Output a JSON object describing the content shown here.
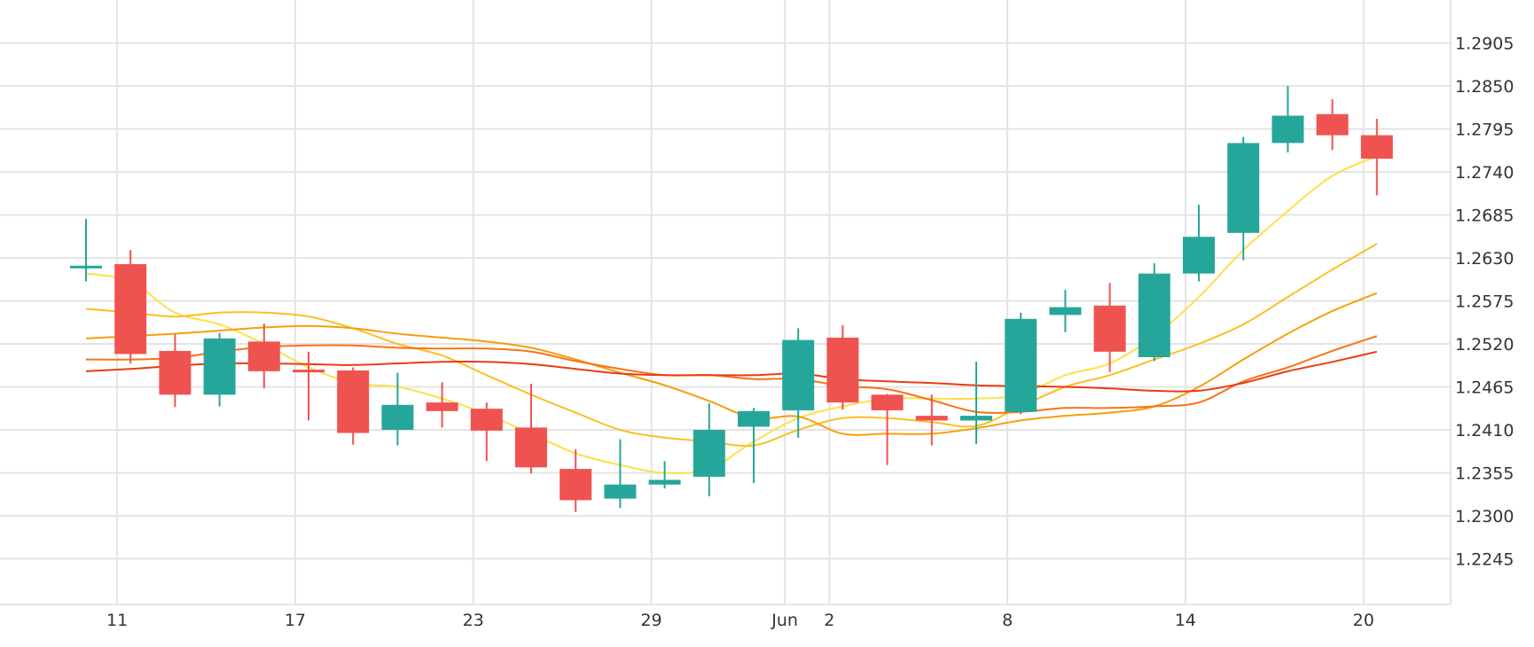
{
  "chart_data": {
    "type": "candlestick",
    "y_ticks": [
      "1.2905",
      "1.2850",
      "1.2795",
      "1.2740",
      "1.2685",
      "1.2630",
      "1.2575",
      "1.2520",
      "1.2465",
      "1.2410",
      "1.2355",
      "1.2300",
      "1.2245"
    ],
    "x_ticks": [
      "11",
      "17",
      "23",
      "29",
      "Jun",
      "2",
      "8",
      "14",
      "20"
    ],
    "ylim": [
      1.219,
      1.296
    ],
    "grid": true,
    "colors": {
      "up": "#26a69a",
      "down": "#ef5350",
      "grid": "#e4e4e4"
    },
    "candles": [
      {
        "o": 1.262,
        "h": 1.268,
        "l": 1.26,
        "c": 1.262
      },
      {
        "o": 1.2622,
        "h": 1.264,
        "l": 1.2495,
        "c": 1.2507
      },
      {
        "o": 1.2511,
        "h": 1.2532,
        "l": 1.2439,
        "c": 1.2455
      },
      {
        "o": 1.2455,
        "h": 1.2534,
        "l": 1.244,
        "c": 1.2527
      },
      {
        "o": 1.2523,
        "h": 1.2546,
        "l": 1.2463,
        "c": 1.2485
      },
      {
        "o": 1.2487,
        "h": 1.251,
        "l": 1.2422,
        "c": 1.2485
      },
      {
        "o": 1.2486,
        "h": 1.249,
        "l": 1.2391,
        "c": 1.2406
      },
      {
        "o": 1.241,
        "h": 1.2483,
        "l": 1.239,
        "c": 1.2442
      },
      {
        "o": 1.2445,
        "h": 1.2471,
        "l": 1.2413,
        "c": 1.2434
      },
      {
        "o": 1.2437,
        "h": 1.2445,
        "l": 1.237,
        "c": 1.2409
      },
      {
        "o": 1.2413,
        "h": 1.2469,
        "l": 1.2354,
        "c": 1.2362
      },
      {
        "o": 1.236,
        "h": 1.2385,
        "l": 1.2305,
        "c": 1.232
      },
      {
        "o": 1.2322,
        "h": 1.2398,
        "l": 1.231,
        "c": 1.234
      },
      {
        "o": 1.234,
        "h": 1.237,
        "l": 1.2335,
        "c": 1.2346
      },
      {
        "o": 1.235,
        "h": 1.2444,
        "l": 1.2325,
        "c": 1.241
      },
      {
        "o": 1.2414,
        "h": 1.2438,
        "l": 1.2342,
        "c": 1.2434
      },
      {
        "o": 1.2435,
        "h": 1.254,
        "l": 1.24,
        "c": 1.2525
      },
      {
        "o": 1.2528,
        "h": 1.2544,
        "l": 1.2436,
        "c": 1.2445
      },
      {
        "o": 1.2455,
        "h": 1.2456,
        "l": 1.2365,
        "c": 1.2435
      },
      {
        "o": 1.2428,
        "h": 1.2455,
        "l": 1.239,
        "c": 1.2422
      },
      {
        "o": 1.2422,
        "h": 1.2497,
        "l": 1.2392,
        "c": 1.2428
      },
      {
        "o": 1.2433,
        "h": 1.256,
        "l": 1.243,
        "c": 1.2552
      },
      {
        "o": 1.2557,
        "h": 1.2589,
        "l": 1.2535,
        "c": 1.2567
      },
      {
        "o": 1.2569,
        "h": 1.2598,
        "l": 1.2484,
        "c": 1.251
      },
      {
        "o": 1.2503,
        "h": 1.2623,
        "l": 1.2498,
        "c": 1.261
      },
      {
        "o": 1.261,
        "h": 1.2698,
        "l": 1.26,
        "c": 1.2657
      },
      {
        "o": 1.2662,
        "h": 1.2785,
        "l": 1.2627,
        "c": 1.2777
      },
      {
        "o": 1.2777,
        "h": 1.285,
        "l": 1.2765,
        "c": 1.2812
      },
      {
        "o": 1.2814,
        "h": 1.2833,
        "l": 1.2768,
        "c": 1.2787
      },
      {
        "o": 1.2787,
        "h": 1.2808,
        "l": 1.271,
        "c": 1.2757
      }
    ],
    "ma_lines": [
      {
        "color": "#fff176",
        "stroke": "#fde047",
        "values": [
          1.261,
          1.26,
          1.256,
          1.2545,
          1.252,
          1.249,
          1.247,
          1.2465,
          1.245,
          1.243,
          1.2405,
          1.238,
          1.2365,
          1.2355,
          1.236,
          1.2395,
          1.2425,
          1.244,
          1.245,
          1.245,
          1.245,
          1.2455,
          1.248,
          1.2495,
          1.253,
          1.258,
          1.264,
          1.269,
          1.2735,
          1.276
        ]
      },
      {
        "color": "#ffc107",
        "stroke": "#fbbf24",
        "values": [
          1.2565,
          1.256,
          1.2555,
          1.256,
          1.256,
          1.2555,
          1.254,
          1.252,
          1.2505,
          1.248,
          1.2455,
          1.2432,
          1.241,
          1.24,
          1.2395,
          1.239,
          1.241,
          1.2425,
          1.2425,
          1.242,
          1.2415,
          1.244,
          1.2465,
          1.248,
          1.25,
          1.252,
          1.2545,
          1.258,
          1.2615,
          1.2648
        ]
      },
      {
        "color": "#ff9800",
        "stroke": "#f59e0b",
        "values": [
          1.2527,
          1.253,
          1.2533,
          1.2537,
          1.2541,
          1.2543,
          1.254,
          1.2533,
          1.2528,
          1.2523,
          1.2515,
          1.25,
          1.2483,
          1.2467,
          1.2447,
          1.2425,
          1.2427,
          1.2405,
          1.2405,
          1.2405,
          1.2412,
          1.2422,
          1.2428,
          1.2432,
          1.244,
          1.2465,
          1.25,
          1.2533,
          1.2562,
          1.2585
        ]
      },
      {
        "color": "#ff5722",
        "stroke": "#f97316",
        "values": [
          1.25,
          1.25,
          1.2502,
          1.251,
          1.2516,
          1.2518,
          1.2518,
          1.2515,
          1.2514,
          1.2514,
          1.251,
          1.2498,
          1.2488,
          1.248,
          1.248,
          1.2475,
          1.2475,
          1.2466,
          1.2462,
          1.2448,
          1.2433,
          1.2433,
          1.2438,
          1.2438,
          1.244,
          1.2445,
          1.2472,
          1.249,
          1.2511,
          1.253
        ]
      },
      {
        "color": "#f4511e",
        "stroke": "#ea3c12",
        "values": [
          1.2485,
          1.2488,
          1.2492,
          1.2495,
          1.2495,
          1.2494,
          1.2493,
          1.2495,
          1.2497,
          1.2497,
          1.2494,
          1.2488,
          1.2482,
          1.248,
          1.248,
          1.248,
          1.2482,
          1.2475,
          1.2472,
          1.247,
          1.2467,
          1.2466,
          1.2465,
          1.2463,
          1.246,
          1.246,
          1.247,
          1.2485,
          1.2497,
          1.251
        ]
      }
    ]
  }
}
